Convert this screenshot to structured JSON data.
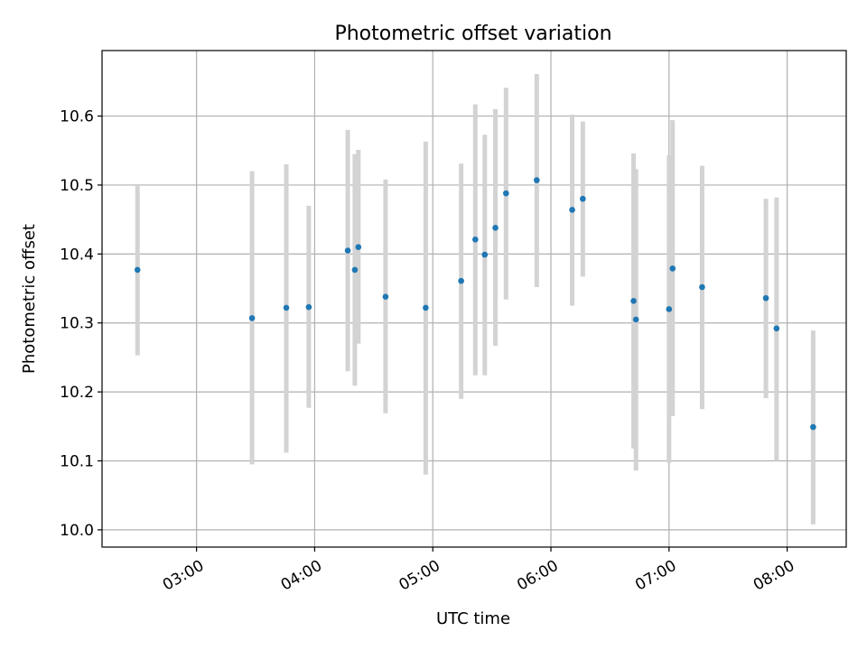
{
  "chart_data": {
    "type": "scatter",
    "title": "Photometric offset variation",
    "xlabel": "UTC time",
    "ylabel": "Photometric offset",
    "x_units": "UTC hours (decimal)",
    "xlim": [
      2.2,
      8.5
    ],
    "ylim": [
      9.975,
      10.695
    ],
    "xticks": [
      {
        "value": 3,
        "label": "03:00"
      },
      {
        "value": 4,
        "label": "04:00"
      },
      {
        "value": 5,
        "label": "05:00"
      },
      {
        "value": 6,
        "label": "06:00"
      },
      {
        "value": 7,
        "label": "07:00"
      },
      {
        "value": 8,
        "label": "08:00"
      }
    ],
    "yticks": [
      {
        "value": 10.0,
        "label": "10.0"
      },
      {
        "value": 10.1,
        "label": "10.1"
      },
      {
        "value": 10.2,
        "label": "10.2"
      },
      {
        "value": 10.3,
        "label": "10.3"
      },
      {
        "value": 10.4,
        "label": "10.4"
      },
      {
        "value": 10.5,
        "label": "10.5"
      },
      {
        "value": 10.6,
        "label": "10.6"
      }
    ],
    "grid": true,
    "marker_color": "#1f77b4",
    "errorbar_color": "#d3d3d3",
    "points": [
      {
        "x": 2.5,
        "y": 10.377,
        "ylow": 10.253,
        "yhigh": 10.5
      },
      {
        "x": 3.47,
        "y": 10.307,
        "ylow": 10.095,
        "yhigh": 10.52
      },
      {
        "x": 3.76,
        "y": 10.322,
        "ylow": 10.112,
        "yhigh": 10.53
      },
      {
        "x": 3.95,
        "y": 10.323,
        "ylow": 10.177,
        "yhigh": 10.47
      },
      {
        "x": 4.28,
        "y": 10.405,
        "ylow": 10.23,
        "yhigh": 10.58
      },
      {
        "x": 4.34,
        "y": 10.377,
        "ylow": 10.209,
        "yhigh": 10.545
      },
      {
        "x": 4.37,
        "y": 10.41,
        "ylow": 10.27,
        "yhigh": 10.551
      },
      {
        "x": 4.6,
        "y": 10.338,
        "ylow": 10.169,
        "yhigh": 10.508
      },
      {
        "x": 4.94,
        "y": 10.322,
        "ylow": 10.08,
        "yhigh": 10.563
      },
      {
        "x": 5.24,
        "y": 10.361,
        "ylow": 10.19,
        "yhigh": 10.531
      },
      {
        "x": 5.36,
        "y": 10.421,
        "ylow": 10.224,
        "yhigh": 10.617
      },
      {
        "x": 5.44,
        "y": 10.399,
        "ylow": 10.224,
        "yhigh": 10.573
      },
      {
        "x": 5.53,
        "y": 10.438,
        "ylow": 10.267,
        "yhigh": 10.61
      },
      {
        "x": 5.62,
        "y": 10.488,
        "ylow": 10.334,
        "yhigh": 10.641
      },
      {
        "x": 5.88,
        "y": 10.507,
        "ylow": 10.352,
        "yhigh": 10.661
      },
      {
        "x": 6.18,
        "y": 10.464,
        "ylow": 10.325,
        "yhigh": 10.602
      },
      {
        "x": 6.27,
        "y": 10.48,
        "ylow": 10.367,
        "yhigh": 10.592
      },
      {
        "x": 6.7,
        "y": 10.332,
        "ylow": 10.118,
        "yhigh": 10.546
      },
      {
        "x": 6.72,
        "y": 10.305,
        "ylow": 10.086,
        "yhigh": 10.523
      },
      {
        "x": 7.0,
        "y": 10.32,
        "ylow": 10.097,
        "yhigh": 10.543
      },
      {
        "x": 7.03,
        "y": 10.379,
        "ylow": 10.165,
        "yhigh": 10.594
      },
      {
        "x": 7.28,
        "y": 10.352,
        "ylow": 10.175,
        "yhigh": 10.528
      },
      {
        "x": 7.82,
        "y": 10.336,
        "ylow": 10.191,
        "yhigh": 10.48
      },
      {
        "x": 7.91,
        "y": 10.292,
        "ylow": 10.1,
        "yhigh": 10.482
      },
      {
        "x": 8.22,
        "y": 10.149,
        "ylow": 10.008,
        "yhigh": 10.289
      }
    ]
  }
}
